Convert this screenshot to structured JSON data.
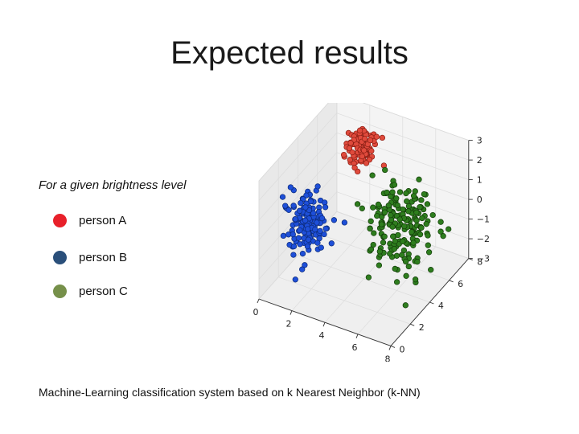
{
  "slide": {
    "title": "Expected results",
    "caption": "Machine-Learning classification system based on k Nearest Neighbor (k-NN)"
  },
  "legend": {
    "caption": "For a given brightness level",
    "items": [
      {
        "label": "person A",
        "color": "#e8202a"
      },
      {
        "label": "person B",
        "color": "#2a4f7a"
      },
      {
        "label": "person C",
        "color": "#76904a"
      }
    ]
  },
  "chart_data": {
    "type": "scatter",
    "projection": "3d",
    "title": "",
    "x_ticks": [
      "0",
      "2",
      "4",
      "6",
      "8"
    ],
    "y_ticks": [
      "0",
      "2",
      "4",
      "6",
      "8"
    ],
    "z_ticks": [
      "3",
      "2",
      "1",
      "0",
      "−1",
      "−2",
      "−3"
    ],
    "xlim": [
      0,
      8
    ],
    "ylim": [
      0,
      8
    ],
    "zlim": [
      -3,
      3
    ],
    "grid": true,
    "series": [
      {
        "name": "person A",
        "color": "#e04a3c",
        "edge": "#8a1e14",
        "center": [
          2.6,
          6.2,
          2.0
        ],
        "spread": [
          0.45,
          0.45,
          0.45
        ],
        "count": 95
      },
      {
        "name": "person B",
        "color": "#1e4fd8",
        "edge": "#0c2a78",
        "center": [
          1.2,
          3.0,
          -0.6
        ],
        "spread": [
          0.55,
          0.6,
          0.7
        ],
        "count": 145
      },
      {
        "name": "person C",
        "color": "#2e7d1e",
        "edge": "#143d0a",
        "center": [
          6.0,
          4.5,
          0.0
        ],
        "spread": [
          0.9,
          0.9,
          0.9
        ],
        "count": 190
      }
    ]
  }
}
